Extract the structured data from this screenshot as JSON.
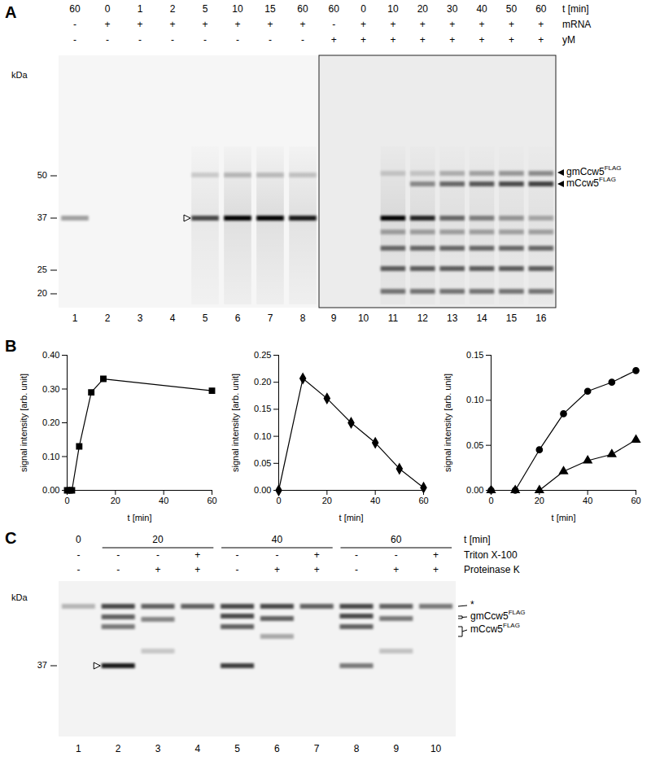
{
  "panel_letters": [
    "A",
    "B",
    "C"
  ],
  "gels": [
    {
      "header_rows": [
        {
          "label": "t [min]",
          "values": [
            60,
            0,
            1,
            2,
            5,
            10,
            15,
            60,
            60,
            0,
            10,
            20,
            30,
            40,
            50,
            60
          ]
        },
        {
          "label": "mRNA",
          "values": [
            "-",
            "+",
            "+",
            "+",
            "+",
            "+",
            "+",
            "+",
            "-",
            "+",
            "+",
            "+",
            "+",
            "+",
            "+",
            "+"
          ]
        },
        {
          "label": "yM",
          "values": [
            "-",
            "-",
            "-",
            "-",
            "-",
            "-",
            "-",
            "-",
            "+",
            "+",
            "+",
            "+",
            "+",
            "+",
            "+",
            "+"
          ]
        }
      ],
      "lane_numbers": [
        1,
        2,
        3,
        4,
        5,
        6,
        7,
        8,
        9,
        10,
        11,
        12,
        13,
        14,
        15,
        16
      ],
      "unit": "kDa",
      "markers": [
        50,
        37,
        25,
        20
      ],
      "band_labels": [
        {
          "text": "gmCcw5",
          "superscript": "FLAG"
        },
        {
          "text": "mCcw5",
          "superscript": "FLAG"
        }
      ]
    },
    {
      "time_row": {
        "label": "t [min]",
        "groups": [
          {
            "value": 0,
            "lanes": [
              1
            ]
          },
          {
            "value": 20,
            "lanes": [
              2,
              3,
              4
            ]
          },
          {
            "value": 40,
            "lanes": [
              5,
              6,
              7
            ]
          },
          {
            "value": 60,
            "lanes": [
              8,
              9,
              10
            ]
          }
        ]
      },
      "header_rows": [
        {
          "label": "Triton X-100",
          "values": [
            "-",
            "-",
            "-",
            "+",
            "-",
            "-",
            "+",
            "-",
            "-",
            "+"
          ]
        },
        {
          "label": "Proteinase K",
          "values": [
            "-",
            "-",
            "+",
            "+",
            "-",
            "+",
            "+",
            "-",
            "+",
            "+"
          ]
        }
      ],
      "lane_numbers": [
        1,
        2,
        3,
        4,
        5,
        6,
        7,
        8,
        9,
        10
      ],
      "unit": "kDa",
      "markers": [
        37
      ],
      "band_labels": [
        {
          "text": "*",
          "superscript": null
        },
        {
          "text": "gmCcw5",
          "superscript": "FLAG"
        },
        {
          "text": "mCcw5",
          "superscript": "FLAG"
        }
      ]
    }
  ],
  "chart_data": [
    {
      "type": "line",
      "xlabel": "t [min]",
      "ylabel": "signal intensity [arb. unit]",
      "x": [
        0,
        1,
        2,
        5,
        10,
        15,
        60
      ],
      "series": [
        {
          "color": "#000000",
          "marker": "square",
          "values": [
            0,
            0,
            0,
            0.13,
            0.29,
            0.33,
            0.295
          ]
        }
      ],
      "xlim": [
        0,
        60
      ],
      "xticks": [
        0,
        20,
        40,
        60
      ],
      "ylim": [
        0,
        0.4
      ],
      "yticks": [
        {
          "value": 0,
          "label": "0.00"
        },
        {
          "value": 0.1,
          "label": "0.10"
        },
        {
          "value": 0.2,
          "label": "0.20"
        },
        {
          "value": 0.3,
          "label": "0.30"
        },
        {
          "value": 0.4,
          "label": "0.40"
        }
      ]
    },
    {
      "type": "line",
      "xlabel": "t [min]",
      "ylabel": "signal intensity [arb. unit]",
      "x": [
        0,
        10,
        20,
        30,
        40,
        50,
        60
      ],
      "series": [
        {
          "color": "#000000",
          "marker": "diamond",
          "values": [
            0,
            0.207,
            0.17,
            0.125,
            0.088,
            0.04,
            0.005
          ]
        }
      ],
      "xlim": [
        0,
        60
      ],
      "xticks": [
        0,
        20,
        40,
        60
      ],
      "ylim": [
        0,
        0.25
      ],
      "yticks": [
        {
          "value": 0,
          "label": "0.00"
        },
        {
          "value": 0.05,
          "label": "0.05"
        },
        {
          "value": 0.1,
          "label": "0.10"
        },
        {
          "value": 0.15,
          "label": "0.15"
        },
        {
          "value": 0.2,
          "label": "0.20"
        },
        {
          "value": 0.25,
          "label": "0.25"
        }
      ]
    },
    {
      "type": "line",
      "xlabel": "t [min]",
      "ylabel": "signal intensity [arb. unit]",
      "x": [
        0,
        10,
        20,
        30,
        40,
        50,
        60
      ],
      "series": [
        {
          "color": "#000000",
          "marker": "circle",
          "values": [
            0,
            0,
            0.045,
            0.085,
            0.11,
            0.12,
            0.133
          ]
        },
        {
          "color": "#000000",
          "marker": "triangle",
          "values": [
            0,
            0,
            0,
            0.021,
            0.033,
            0.04,
            0.056
          ]
        }
      ],
      "xlim": [
        0,
        60
      ],
      "xticks": [
        0,
        20,
        40,
        60
      ],
      "ylim": [
        0,
        0.15
      ],
      "yticks": [
        {
          "value": 0,
          "label": "0.00"
        },
        {
          "value": 0.05,
          "label": "0.05"
        },
        {
          "value": 0.1,
          "label": "0.10"
        },
        {
          "value": 0.15,
          "label": "0.15"
        }
      ]
    }
  ]
}
